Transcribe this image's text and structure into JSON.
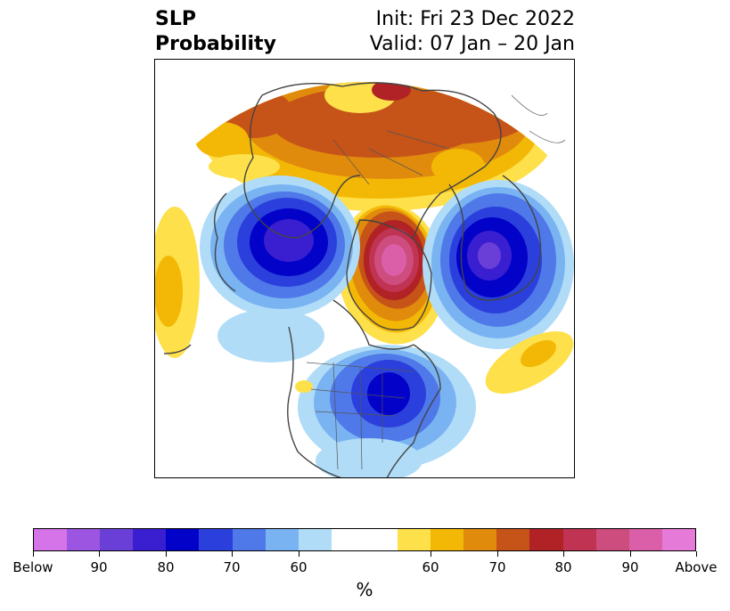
{
  "title": {
    "left_line1": "SLP",
    "left_line2": "Probability",
    "right_line1": "Init: Fri 23 Dec 2022",
    "right_line2": "Valid: 07 Jan – 20 Jan"
  },
  "colorbar": {
    "colors": [
      "#d574e8",
      "#9b55e0",
      "#6a3fd8",
      "#3a1fd0",
      "#0202c8",
      "#2a3fdc",
      "#4f78e8",
      "#7ab3f2",
      "#b0dcf8",
      "#ffffff",
      "#ffffff",
      "#fee04a",
      "#f3b806",
      "#e08b0c",
      "#c65318",
      "#b02225",
      "#c03352",
      "#cc4d7e",
      "#db5fa8",
      "#e57ad8"
    ],
    "tick_labels": [
      "Below",
      "90",
      "80",
      "70",
      "60",
      "60",
      "70",
      "80",
      "90",
      "Above"
    ],
    "unit": "%"
  },
  "map": {
    "projection": "north polar stereographic",
    "features": [
      "Arctic",
      "North America",
      "Eurasia",
      "Greenland",
      "United States"
    ]
  }
}
